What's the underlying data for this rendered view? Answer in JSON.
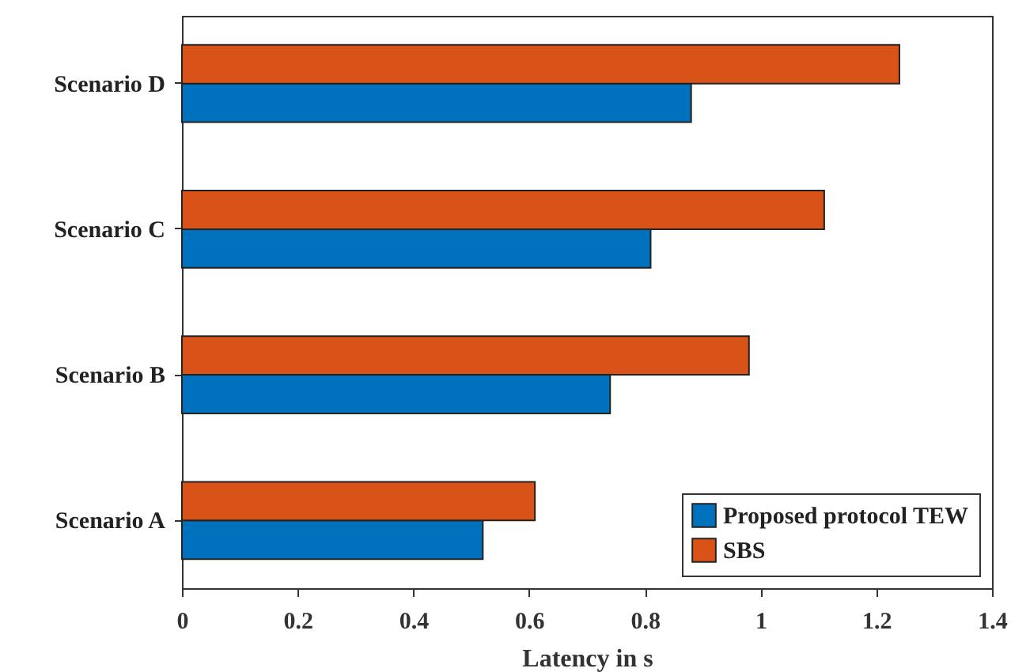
{
  "chart_data": {
    "type": "bar",
    "orientation": "horizontal",
    "xlabel": "Latency in s",
    "categories": [
      "Scenario D",
      "Scenario C",
      "Scenario B",
      "Scenario A"
    ],
    "series": [
      {
        "name": "Proposed protocol TEW",
        "color": "#0072bd",
        "values": [
          0.88,
          0.81,
          0.74,
          0.52
        ]
      },
      {
        "name": "SBS",
        "color": "#d95319",
        "values": [
          1.24,
          1.11,
          0.98,
          0.61
        ]
      }
    ],
    "xlim": [
      0,
      1.4
    ],
    "xticks": [
      0,
      0.2,
      0.4,
      0.6,
      0.8,
      1,
      1.2,
      1.4
    ],
    "grid": false,
    "legend": "bottom right"
  }
}
